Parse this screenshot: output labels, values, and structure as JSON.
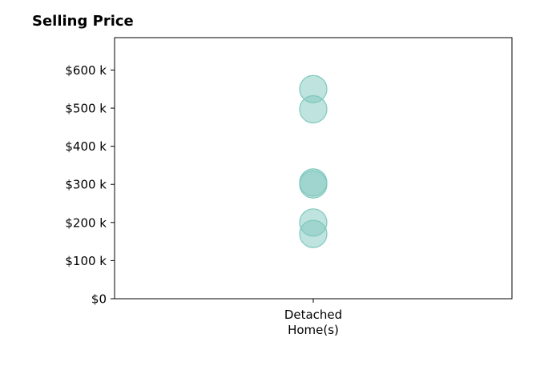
{
  "chart_data": {
    "type": "scatter",
    "title": "Selling Price",
    "categories": [
      "Detached\nHome(s)"
    ],
    "series": [
      {
        "category": "Detached\nHome(s)",
        "values": [
          550000,
          497000,
          305000,
          300000,
          200000,
          170000
        ]
      }
    ],
    "yticks": [
      0,
      100000,
      200000,
      300000,
      400000,
      500000,
      600000
    ],
    "ytick_labels": [
      "$0",
      "$100 k",
      "$200 k",
      "$300 k",
      "$400 k",
      "$500 k",
      "$600 k"
    ],
    "ylim": [
      0,
      685000
    ],
    "xlabel": "",
    "ylabel": "",
    "grid": false,
    "marker_color": "#7fc8bd"
  }
}
